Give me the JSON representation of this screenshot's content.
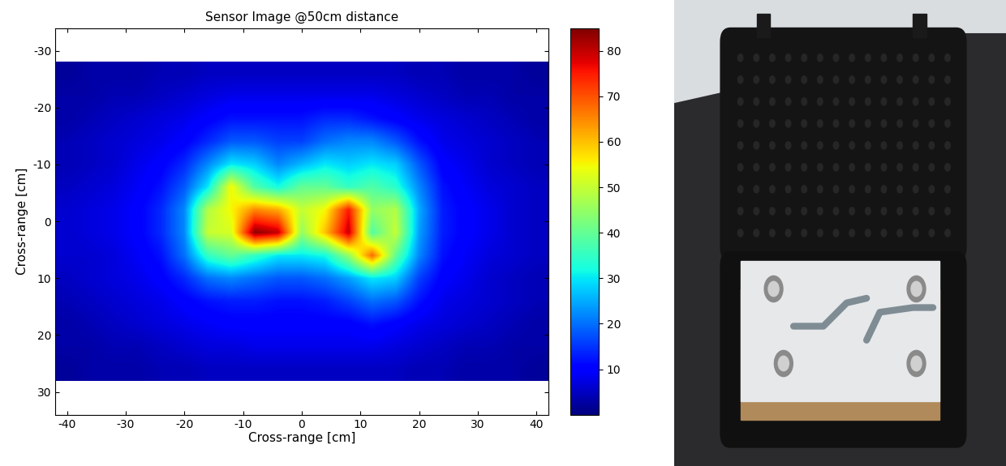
{
  "chart_data": {
    "type": "heatmap",
    "title": "Sensor Image @50cm distance",
    "x_label": "Cross-range [cm]",
    "y_label": "Cross-range [cm]",
    "x": [
      -40,
      -36,
      -32,
      -28,
      -24,
      -20,
      -16,
      -12,
      -8,
      -4,
      0,
      4,
      8,
      12,
      16,
      20,
      24,
      28,
      32,
      36,
      40
    ],
    "y": [
      -26,
      -22,
      -18,
      -14,
      -10,
      -6,
      -2,
      2,
      6,
      10,
      14,
      18,
      22,
      26
    ],
    "cells": [
      [
        2,
        3,
        3,
        3,
        4,
        4,
        5,
        5,
        5,
        5,
        5,
        5,
        5,
        5,
        5,
        4,
        4,
        3,
        3,
        3,
        2
      ],
      [
        3,
        3,
        4,
        4,
        5,
        6,
        7,
        8,
        8,
        8,
        8,
        8,
        8,
        8,
        7,
        6,
        5,
        4,
        4,
        3,
        3
      ],
      [
        3,
        4,
        5,
        6,
        7,
        8,
        10,
        12,
        12,
        12,
        12,
        14,
        14,
        12,
        10,
        8,
        7,
        6,
        5,
        4,
        3
      ],
      [
        4,
        5,
        6,
        7,
        8,
        10,
        14,
        18,
        18,
        16,
        16,
        20,
        22,
        22,
        18,
        12,
        8,
        7,
        6,
        5,
        4
      ],
      [
        4,
        5,
        6,
        8,
        10,
        14,
        22,
        30,
        28,
        22,
        26,
        30,
        28,
        30,
        28,
        18,
        10,
        8,
        6,
        5,
        4
      ],
      [
        5,
        6,
        7,
        9,
        12,
        18,
        30,
        55,
        38,
        32,
        40,
        40,
        35,
        38,
        34,
        22,
        12,
        9,
        7,
        6,
        5
      ],
      [
        6,
        7,
        8,
        10,
        14,
        22,
        48,
        55,
        65,
        62,
        50,
        55,
        75,
        45,
        48,
        25,
        13,
        10,
        8,
        6,
        5
      ],
      [
        6,
        7,
        8,
        10,
        14,
        22,
        50,
        52,
        84,
        80,
        45,
        60,
        80,
        38,
        50,
        24,
        13,
        10,
        8,
        6,
        5
      ],
      [
        6,
        6,
        7,
        9,
        12,
        20,
        35,
        40,
        35,
        30,
        30,
        32,
        45,
        68,
        40,
        22,
        12,
        9,
        7,
        6,
        5
      ],
      [
        5,
        6,
        7,
        8,
        10,
        14,
        20,
        22,
        20,
        18,
        18,
        20,
        24,
        30,
        28,
        16,
        10,
        8,
        6,
        5,
        4
      ],
      [
        4,
        5,
        6,
        7,
        8,
        10,
        12,
        13,
        13,
        12,
        12,
        13,
        16,
        20,
        18,
        12,
        8,
        7,
        6,
        5,
        4
      ],
      [
        3,
        4,
        5,
        6,
        7,
        8,
        9,
        10,
        10,
        10,
        10,
        10,
        10,
        12,
        10,
        8,
        7,
        6,
        5,
        4,
        3
      ],
      [
        3,
        3,
        4,
        4,
        5,
        6,
        7,
        7,
        8,
        8,
        8,
        8,
        8,
        8,
        7,
        6,
        5,
        4,
        4,
        3,
        3
      ],
      [
        2,
        3,
        3,
        3,
        4,
        4,
        5,
        5,
        5,
        5,
        5,
        5,
        5,
        5,
        5,
        4,
        4,
        3,
        3,
        3,
        2
      ]
    ],
    "color": "jet",
    "xlim": [
      -42,
      42
    ],
    "ylim": [
      34,
      -34
    ],
    "xticks": [
      -40,
      -30,
      -20,
      -10,
      0,
      10,
      20,
      30,
      40
    ],
    "yticks": [
      -30,
      -20,
      -10,
      0,
      10,
      20,
      30
    ],
    "colorbar_range": [
      0,
      85
    ],
    "colorbar_ticks": [
      10,
      20,
      30,
      40,
      50,
      60,
      70,
      80
    ]
  }
}
